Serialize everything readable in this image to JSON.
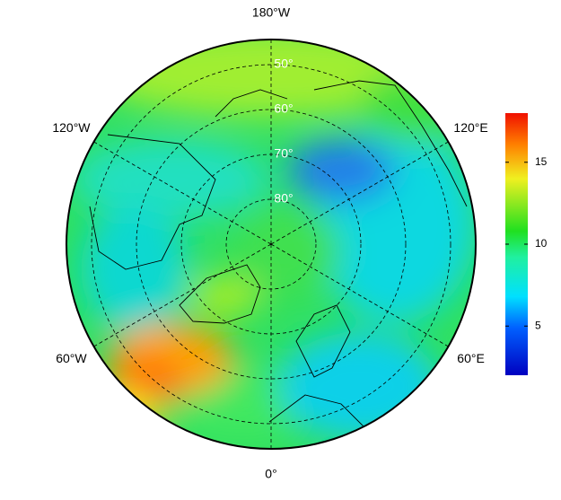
{
  "map": {
    "longitude_labels": [
      {
        "value": -180,
        "label": "180°W"
      },
      {
        "value": -120,
        "label": "120°W"
      },
      {
        "value": 120,
        "label": "120°E"
      },
      {
        "value": -60,
        "label": "60°W"
      },
      {
        "value": 60,
        "label": "60°E"
      },
      {
        "value": 0,
        "label": "0°"
      }
    ],
    "latitude_labels": [
      {
        "value": 50,
        "label": "50°"
      },
      {
        "value": 60,
        "label": "60°"
      },
      {
        "value": 70,
        "label": "70°"
      },
      {
        "value": 80,
        "label": "80°"
      }
    ]
  },
  "colorbar": {
    "lim": [
      2,
      18
    ],
    "ticks": [
      5,
      10,
      15
    ]
  }
}
